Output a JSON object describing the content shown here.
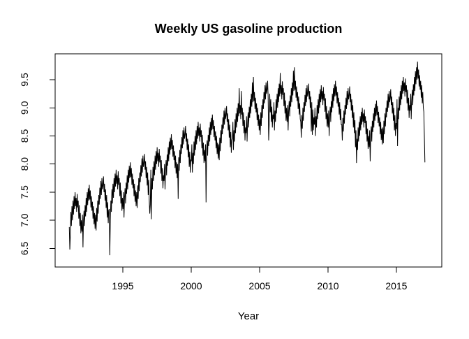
{
  "window": {
    "background": "#ffffff"
  },
  "chart_data": {
    "type": "line",
    "title": "Weekly US gasoline production",
    "xlabel": "Year",
    "ylabel": "",
    "legend": "none",
    "grid": false,
    "line_color": "#000000",
    "x_ticks": [
      "1995",
      "2000",
      "2005",
      "2010",
      "2015"
    ],
    "y_ticks": [
      "6.5",
      "7.0",
      "7.5",
      "8.0",
      "8.5",
      "9.0",
      "9.5"
    ],
    "xlim": [
      1990.05,
      2018.32
    ],
    "ylim": [
      6.17,
      9.96
    ],
    "x_start": 1991.085,
    "x_step_years": 0.038462,
    "values": [
      6.88,
      6.48,
      6.75,
      7.15,
      6.9,
      7.25,
      7.0,
      7.35,
      7.1,
      7.43,
      7.2,
      7.5,
      7.25,
      7.4,
      7.15,
      7.47,
      7.23,
      7.35,
      7.03,
      7.27,
      6.9,
      7.13,
      6.77,
      7.0,
      6.8,
      7.1,
      6.52,
      7.0,
      7.17,
      6.9,
      7.27,
      7.07,
      7.4,
      7.15,
      7.5,
      7.27,
      7.57,
      7.35,
      7.63,
      7.37,
      7.53,
      7.23,
      7.43,
      7.17,
      7.33,
      7.03,
      7.25,
      6.93,
      7.13,
      6.85,
      7.1,
      6.82,
      7.22,
      6.98,
      7.35,
      7.12,
      7.45,
      7.28,
      7.58,
      7.38,
      7.7,
      7.45,
      7.75,
      7.55,
      7.62,
      7.78,
      7.5,
      7.65,
      7.35,
      7.55,
      7.22,
      7.45,
      7.05,
      7.32,
      6.95,
      7.18,
      7.2,
      6.38,
      7.0,
      7.35,
      7.15,
      7.55,
      7.3,
      7.65,
      7.4,
      7.75,
      7.5,
      7.83,
      7.6,
      7.9,
      7.65,
      7.8,
      7.55,
      7.87,
      7.63,
      7.75,
      7.43,
      7.67,
      7.3,
      7.53,
      7.17,
      7.4,
      7.2,
      7.5,
      7.05,
      7.4,
      7.57,
      7.3,
      7.67,
      7.47,
      7.8,
      7.55,
      7.9,
      7.67,
      7.97,
      7.75,
      8.03,
      7.77,
      7.93,
      7.63,
      7.83,
      7.57,
      7.73,
      7.43,
      7.65,
      7.33,
      7.53,
      7.25,
      7.5,
      7.22,
      7.62,
      7.38,
      7.75,
      7.52,
      7.85,
      7.68,
      7.98,
      7.78,
      8.1,
      7.85,
      8.15,
      7.95,
      8.02,
      8.18,
      7.9,
      8.05,
      7.75,
      7.95,
      7.62,
      7.85,
      7.45,
      7.72,
      7.35,
      7.12,
      7.28,
      7.9,
      7.02,
      7.75,
      7.55,
      7.95,
      7.7,
      8.05,
      7.8,
      8.15,
      7.9,
      8.23,
      8.0,
      8.3,
      8.05,
      8.2,
      7.95,
      8.27,
      8.03,
      8.15,
      7.83,
      8.07,
      7.7,
      7.93,
      7.57,
      7.8,
      7.7,
      8.0,
      7.55,
      7.9,
      8.07,
      7.8,
      8.17,
      7.97,
      8.3,
      8.05,
      8.4,
      8.17,
      8.47,
      8.25,
      8.53,
      8.27,
      8.43,
      8.13,
      8.33,
      8.07,
      8.23,
      7.93,
      8.15,
      7.83,
      8.03,
      7.75,
      8.0,
      7.38,
      8.12,
      7.88,
      8.25,
      8.02,
      8.35,
      8.18,
      8.48,
      8.28,
      8.6,
      8.35,
      8.65,
      8.45,
      8.52,
      8.68,
      8.4,
      8.55,
      8.25,
      8.45,
      8.12,
      8.35,
      7.95,
      8.22,
      7.85,
      8.08,
      8.05,
      8.35,
      7.85,
      8.2,
      8.0,
      8.4,
      8.15,
      8.5,
      8.25,
      8.6,
      8.35,
      8.68,
      8.45,
      8.75,
      8.5,
      8.65,
      8.4,
      8.72,
      8.48,
      8.6,
      8.28,
      8.52,
      8.15,
      8.38,
      8.02,
      8.25,
      8.05,
      8.35,
      7.32,
      8.25,
      8.42,
      8.15,
      8.52,
      8.32,
      8.65,
      8.4,
      8.75,
      8.52,
      8.82,
      8.6,
      8.88,
      8.62,
      8.78,
      8.48,
      8.68,
      8.42,
      8.58,
      8.28,
      8.5,
      8.18,
      8.38,
      8.1,
      8.35,
      8.07,
      8.47,
      8.23,
      8.6,
      8.37,
      8.7,
      8.53,
      8.83,
      8.63,
      8.95,
      8.7,
      9.0,
      8.8,
      8.87,
      9.03,
      8.75,
      8.9,
      8.6,
      8.8,
      8.47,
      8.7,
      8.3,
      8.57,
      8.2,
      8.43,
      8.45,
      8.75,
      8.25,
      8.6,
      8.4,
      8.8,
      8.55,
      8.9,
      8.65,
      9.0,
      8.75,
      9.08,
      8.85,
      9.35,
      8.9,
      9.05,
      8.8,
      9.3,
      8.88,
      9.0,
      8.68,
      8.92,
      8.55,
      8.78,
      8.42,
      8.65,
      8.55,
      8.85,
      8.4,
      8.75,
      8.92,
      8.65,
      9.02,
      8.82,
      9.15,
      8.9,
      9.25,
      9.02,
      9.45,
      9.1,
      9.55,
      9.12,
      9.28,
      8.98,
      9.18,
      8.92,
      9.08,
      8.78,
      9.0,
      8.68,
      8.88,
      8.6,
      8.8,
      8.52,
      8.92,
      8.68,
      9.05,
      8.82,
      9.15,
      8.98,
      9.28,
      9.08,
      9.4,
      9.15,
      9.45,
      9.25,
      9.32,
      9.48,
      9.2,
      8.42,
      8.7,
      9.25,
      8.92,
      9.15,
      8.75,
      9.02,
      8.65,
      8.88,
      8.8,
      9.1,
      8.6,
      8.95,
      8.75,
      9.15,
      8.9,
      9.25,
      9.0,
      9.35,
      9.1,
      9.43,
      9.2,
      9.62,
      9.25,
      9.4,
      9.15,
      9.47,
      9.23,
      9.35,
      9.03,
      9.27,
      8.9,
      9.13,
      8.77,
      9.0,
      8.75,
      9.05,
      8.6,
      8.95,
      9.12,
      8.85,
      9.22,
      9.02,
      9.35,
      9.1,
      9.45,
      9.22,
      9.66,
      9.3,
      9.72,
      9.32,
      9.48,
      9.18,
      9.38,
      9.12,
      9.28,
      8.98,
      9.2,
      8.88,
      9.08,
      8.8,
      8.75,
      8.47,
      8.87,
      8.63,
      9.0,
      8.77,
      9.1,
      8.93,
      9.23,
      9.03,
      9.35,
      9.1,
      9.4,
      9.2,
      9.27,
      9.43,
      9.15,
      9.3,
      9.0,
      9.2,
      8.58,
      9.1,
      8.52,
      8.97,
      8.6,
      8.83,
      8.7,
      9.0,
      8.5,
      8.85,
      8.65,
      9.05,
      8.8,
      9.15,
      8.9,
      9.25,
      9.0,
      9.33,
      9.1,
      9.4,
      9.15,
      9.3,
      9.05,
      9.37,
      9.13,
      9.25,
      8.93,
      9.17,
      8.8,
      9.03,
      8.67,
      8.9,
      8.65,
      8.95,
      8.5,
      8.85,
      9.02,
      8.75,
      9.12,
      8.92,
      9.25,
      9.0,
      9.35,
      9.12,
      9.42,
      9.2,
      9.48,
      9.22,
      9.38,
      9.08,
      9.28,
      9.02,
      9.18,
      8.88,
      9.1,
      8.78,
      8.98,
      8.7,
      8.7,
      8.42,
      8.82,
      8.58,
      8.95,
      8.72,
      9.05,
      8.88,
      9.18,
      8.98,
      9.3,
      9.05,
      9.35,
      9.15,
      9.22,
      9.38,
      9.1,
      9.25,
      8.95,
      9.15,
      8.82,
      9.05,
      8.65,
      8.92,
      8.55,
      8.78,
      8.3,
      8.6,
      8.02,
      8.45,
      8.25,
      8.65,
      8.4,
      8.75,
      8.5,
      8.85,
      8.6,
      8.93,
      8.7,
      9.0,
      8.75,
      8.9,
      8.65,
      8.97,
      8.73,
      8.85,
      8.53,
      8.77,
      8.4,
      8.63,
      8.27,
      8.5,
      8.3,
      8.6,
      8.05,
      8.5,
      8.67,
      8.4,
      8.77,
      8.57,
      8.9,
      8.65,
      9.0,
      8.77,
      9.07,
      8.85,
      9.13,
      8.87,
      9.03,
      8.73,
      8.93,
      8.67,
      8.83,
      8.53,
      8.75,
      8.43,
      8.63,
      8.35,
      8.65,
      8.37,
      8.77,
      8.53,
      8.9,
      8.67,
      9.0,
      8.83,
      9.13,
      8.93,
      9.25,
      9.0,
      9.3,
      9.1,
      9.17,
      9.33,
      9.05,
      9.2,
      8.9,
      9.1,
      8.77,
      9.0,
      8.6,
      8.87,
      8.5,
      8.73,
      8.62,
      9.15,
      8.32,
      9.0,
      8.8,
      9.2,
      8.95,
      9.3,
      9.05,
      9.4,
      9.15,
      9.48,
      9.25,
      9.55,
      9.3,
      9.45,
      9.2,
      9.52,
      9.28,
      9.4,
      9.08,
      9.32,
      8.95,
      9.18,
      8.82,
      9.05,
      8.95,
      9.25,
      8.8,
      9.15,
      9.32,
      9.05,
      9.42,
      9.22,
      9.55,
      9.3,
      9.65,
      9.42,
      9.72,
      9.5,
      9.82,
      9.52,
      9.68,
      9.38,
      9.58,
      9.32,
      9.48,
      9.18,
      9.4,
      9.08,
      9.28,
      9.0,
      8.93,
      8.48,
      8.03
    ]
  }
}
